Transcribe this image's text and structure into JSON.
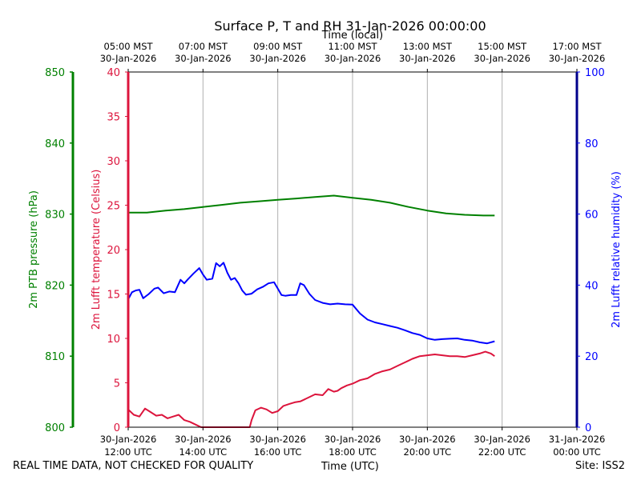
{
  "chart_data": {
    "type": "line",
    "title": "Surface P, T and RH 31-Jan-2026 00:00:00",
    "xlabel_top": "Time (local)",
    "xlabel_bottom": "Time (UTC)",
    "x_unit": "hours since 30-Jan-2026 12:00 UTC",
    "xlim": [
      0,
      12
    ],
    "x_ticks": [
      0,
      2,
      4,
      6,
      8,
      10,
      12
    ],
    "x_ticks_bottom": [
      [
        "30-Jan-2026",
        "12:00 UTC"
      ],
      [
        "30-Jan-2026",
        "14:00 UTC"
      ],
      [
        "30-Jan-2026",
        "16:00 UTC"
      ],
      [
        "30-Jan-2026",
        "18:00 UTC"
      ],
      [
        "30-Jan-2026",
        "20:00 UTC"
      ],
      [
        "30-Jan-2026",
        "22:00 UTC"
      ],
      [
        "31-Jan-2026",
        "00:00 UTC"
      ]
    ],
    "x_ticks_top": [
      [
        "05:00 MST",
        "30-Jan-2026"
      ],
      [
        "07:00 MST",
        "30-Jan-2026"
      ],
      [
        "09:00 MST",
        "30-Jan-2026"
      ],
      [
        "11:00 MST",
        "30-Jan-2026"
      ],
      [
        "13:00 MST",
        "30-Jan-2026"
      ],
      [
        "15:00 MST",
        "30-Jan-2026"
      ],
      [
        "17:00 MST",
        "30-Jan-2026"
      ]
    ],
    "grid": "vertical",
    "axes": {
      "pressure": {
        "label": "2m PTB pressure (hPa)",
        "color": "#008000",
        "ylim": [
          800,
          850
        ],
        "ticks": [
          800,
          810,
          820,
          830,
          840,
          850
        ]
      },
      "temperature": {
        "label": "2m Lufft temperature (Celsius)",
        "color": "#dc143c",
        "ylim": [
          0,
          40
        ],
        "ticks": [
          0,
          5,
          10,
          15,
          20,
          25,
          30,
          35,
          40
        ]
      },
      "humidity": {
        "label": "2m Lufft relative humidity (%)",
        "color": "#0000ff",
        "ylim": [
          0,
          100
        ],
        "ticks": [
          0,
          20,
          40,
          60,
          80,
          100
        ]
      }
    },
    "series": [
      {
        "name": "2m PTB pressure",
        "axis": "pressure",
        "color": "#008000",
        "x": [
          0,
          0.5,
          1,
          1.5,
          2,
          2.5,
          3,
          3.5,
          4,
          4.5,
          5,
          5.5,
          6,
          6.5,
          7,
          7.5,
          8,
          8.5,
          9,
          9.5,
          9.8
        ],
        "y": [
          830.2,
          830.2,
          830.5,
          830.7,
          831.0,
          831.3,
          831.6,
          831.8,
          832.0,
          832.2,
          832.4,
          832.6,
          832.3,
          832.0,
          831.6,
          831.0,
          830.5,
          830.1,
          829.9,
          829.8,
          829.8
        ]
      },
      {
        "name": "2m Lufft temperature",
        "axis": "temperature",
        "color": "#dc143c",
        "x": [
          0,
          0.15,
          0.3,
          0.45,
          0.6,
          0.75,
          0.9,
          1.05,
          1.2,
          1.35,
          1.5,
          1.65,
          1.8,
          1.95,
          2.1,
          2.25,
          2.4,
          2.55,
          2.7,
          2.85,
          3.0,
          3.15,
          3.25,
          3.3,
          3.4,
          3.55,
          3.7,
          3.85,
          4.0,
          4.15,
          4.3,
          4.45,
          4.6,
          4.8,
          5.0,
          5.2,
          5.35,
          5.5,
          5.6,
          5.7,
          5.85,
          6.0,
          6.2,
          6.4,
          6.6,
          6.8,
          7.0,
          7.2,
          7.4,
          7.6,
          7.8,
          8.0,
          8.2,
          8.4,
          8.6,
          8.8,
          9.0,
          9.2,
          9.4,
          9.55,
          9.7,
          9.8
        ],
        "y": [
          2.0,
          1.4,
          1.2,
          2.1,
          1.7,
          1.3,
          1.4,
          1.0,
          1.2,
          1.4,
          0.8,
          0.6,
          0.3,
          -0.3,
          -1.0,
          -1.5,
          -2.0,
          -1.5,
          -1.8,
          -1.5,
          -1.2,
          -1.0,
          -0.3,
          0.8,
          1.9,
          2.2,
          2.0,
          1.6,
          1.8,
          2.4,
          2.6,
          2.8,
          2.9,
          3.3,
          3.7,
          3.6,
          4.3,
          4.0,
          4.1,
          4.4,
          4.7,
          4.9,
          5.3,
          5.5,
          6.0,
          6.3,
          6.5,
          6.9,
          7.3,
          7.7,
          8.0,
          8.1,
          8.2,
          8.1,
          8.0,
          8.0,
          7.9,
          8.1,
          8.3,
          8.5,
          8.3,
          8.0
        ]
      },
      {
        "name": "2m Lufft relative humidity",
        "axis": "humidity",
        "color": "#0000ff",
        "x": [
          0,
          0.1,
          0.2,
          0.3,
          0.4,
          0.55,
          0.7,
          0.8,
          0.95,
          1.1,
          1.25,
          1.4,
          1.5,
          1.6,
          1.75,
          1.9,
          2.0,
          2.1,
          2.25,
          2.35,
          2.45,
          2.55,
          2.65,
          2.75,
          2.85,
          2.95,
          3.05,
          3.15,
          3.3,
          3.45,
          3.6,
          3.75,
          3.9,
          4.0,
          4.1,
          4.2,
          4.35,
          4.5,
          4.6,
          4.7,
          4.85,
          5.0,
          5.2,
          5.4,
          5.6,
          5.8,
          6.0,
          6.2,
          6.4,
          6.6,
          6.8,
          7.0,
          7.2,
          7.4,
          7.6,
          7.8,
          8.0,
          8.2,
          8.4,
          8.6,
          8.8,
          9.0,
          9.2,
          9.4,
          9.6,
          9.8
        ],
        "y": [
          36.0,
          38.0,
          38.5,
          38.7,
          36.3,
          37.5,
          39.0,
          39.3,
          37.7,
          38.2,
          38.0,
          41.5,
          40.5,
          41.7,
          43.3,
          44.8,
          43.0,
          41.5,
          41.8,
          46.2,
          45.3,
          46.3,
          43.5,
          41.5,
          42.0,
          40.5,
          38.5,
          37.3,
          37.6,
          38.8,
          39.5,
          40.5,
          40.8,
          39.0,
          37.2,
          37.0,
          37.2,
          37.2,
          40.5,
          40.0,
          37.5,
          35.8,
          35.0,
          34.6,
          34.8,
          34.6,
          34.5,
          32.0,
          30.3,
          29.5,
          29.0,
          28.5,
          28.0,
          27.3,
          26.5,
          26.0,
          25.0,
          24.6,
          24.8,
          24.9,
          25.0,
          24.6,
          24.4,
          23.9,
          23.6,
          24.2
        ]
      }
    ],
    "footer": {
      "left": "REAL TIME DATA, NOT CHECKED FOR QUALITY",
      "right": "Site: ISS2"
    }
  }
}
